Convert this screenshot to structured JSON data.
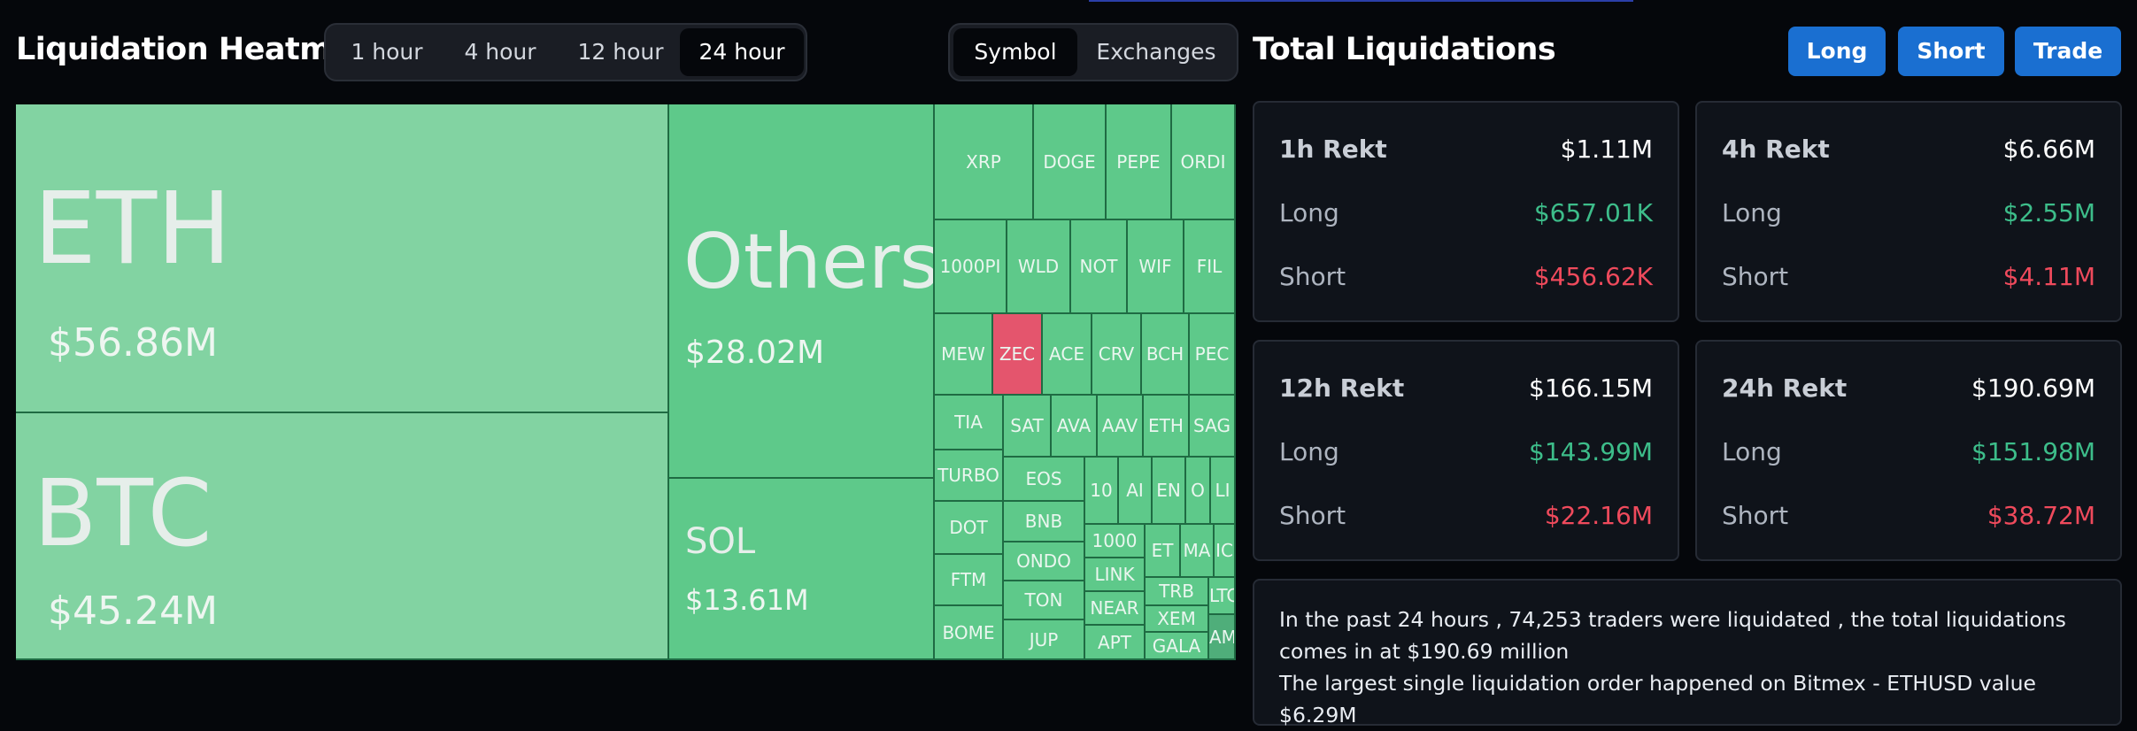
{
  "header": {
    "title": "Liquidation Heatmap",
    "time_tabs": [
      "1 hour",
      "4 hour",
      "12 hour",
      "24 hour"
    ],
    "active_time_tab": "24 hour",
    "view_tabs": [
      "Symbol",
      "Exchanges"
    ],
    "active_view_tab": "Symbol"
  },
  "total": {
    "title": "Total Liquidations",
    "buttons": {
      "long": "Long",
      "short": "Short",
      "trade": "Trade"
    }
  },
  "heatmap": {
    "big": [
      {
        "symbol": "ETH",
        "value": "$56.86M"
      },
      {
        "symbol": "BTC",
        "value": "$45.24M"
      },
      {
        "symbol": "Others",
        "value": "$28.02M"
      },
      {
        "symbol": "SOL",
        "value": "$13.61M"
      }
    ],
    "small": [
      "XRP",
      "DOGE",
      "PEPE",
      "ORDI",
      "1000PI",
      "WLD",
      "NOT",
      "WIF",
      "FIL",
      "MEW",
      "ZEC",
      "ACE",
      "CRV",
      "BCH",
      "PEC",
      "TIA",
      "SAT",
      "AVA",
      "AAV",
      "ETH",
      "SAG",
      "TURBO",
      "EOS",
      "10",
      "AI",
      "EN",
      "O",
      "LI",
      "DOT",
      "BNB",
      "1000",
      "ET",
      "MA",
      "IC",
      "FTM",
      "ONDO",
      "LINK",
      "TRB",
      "LTC",
      "BOME",
      "TON",
      "NEAR",
      "XEM",
      "JUP",
      "APT",
      "GALA",
      "AM"
    ]
  },
  "cards": [
    {
      "label": "1h Rekt",
      "total": "$1.11M",
      "long_label": "Long",
      "long": "$657.01K",
      "short_label": "Short",
      "short": "$456.62K"
    },
    {
      "label": "4h Rekt",
      "total": "$6.66M",
      "long_label": "Long",
      "long": "$2.55M",
      "short_label": "Short",
      "short": "$4.11M"
    },
    {
      "label": "12h Rekt",
      "total": "$166.15M",
      "long_label": "Long",
      "long": "$143.99M",
      "short_label": "Short",
      "short": "$22.16M"
    },
    {
      "label": "24h Rekt",
      "total": "$190.69M",
      "long_label": "Long",
      "long": "$151.98M",
      "short_label": "Short",
      "short": "$38.72M"
    }
  ],
  "summary": {
    "line1": "In the past 24 hours , 74,253 traders were liquidated , the total liquidations comes in at $190.69 million",
    "line2": "The largest single liquidation order happened on Bitmex - ETHUSD value $6.29M"
  },
  "colors": {
    "accent": "#1a6fd1",
    "positive": "#3dbd8a",
    "negative": "#ef4a5c",
    "cell": "#5ec98a",
    "cell_light": "#82d3a2",
    "cell_red": "#e4556d"
  }
}
